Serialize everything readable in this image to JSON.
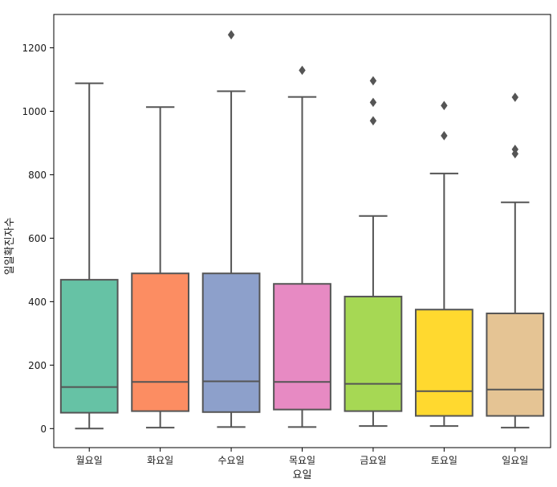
{
  "chart_data": {
    "type": "box",
    "title": "",
    "xlabel": "요일",
    "ylabel": "일일확진자수",
    "ylim": [
      -60,
      1305
    ],
    "yticks": [
      0,
      200,
      400,
      600,
      800,
      1000,
      1200
    ],
    "categories": [
      "월요일",
      "화요일",
      "수요일",
      "목요일",
      "금요일",
      "토요일",
      "일요일"
    ],
    "grid": false,
    "boxes": [
      {
        "category": "월요일",
        "color": "#66c2a5",
        "whisker_low": 0,
        "q1": 50,
        "median": 131,
        "q3": 469,
        "whisker_high": 1088,
        "outliers": []
      },
      {
        "category": "화요일",
        "color": "#fc8d62",
        "whisker_low": 3,
        "q1": 55,
        "median": 147,
        "q3": 489,
        "whisker_high": 1013,
        "outliers": []
      },
      {
        "category": "수요일",
        "color": "#8da0cb",
        "whisker_low": 5,
        "q1": 52,
        "median": 149,
        "q3": 489,
        "whisker_high": 1063,
        "outliers": [
          1241
        ]
      },
      {
        "category": "목요일",
        "color": "#e78ac3",
        "whisker_low": 5,
        "q1": 60,
        "median": 147,
        "q3": 456,
        "whisker_high": 1045,
        "outliers": [
          1129
        ]
      },
      {
        "category": "금요일",
        "color": "#a6d854",
        "whisker_low": 8,
        "q1": 55,
        "median": 141,
        "q3": 416,
        "whisker_high": 670,
        "outliers": [
          970,
          1028,
          1096
        ]
      },
      {
        "category": "토요일",
        "color": "#ffd92f",
        "whisker_low": 8,
        "q1": 40,
        "median": 118,
        "q3": 375,
        "whisker_high": 804,
        "outliers": [
          923,
          1018
        ]
      },
      {
        "category": "일요일",
        "color": "#e5c494",
        "whisker_low": 3,
        "q1": 40,
        "median": 123,
        "q3": 363,
        "whisker_high": 713,
        "outliers": [
          866,
          880,
          1044
        ]
      }
    ]
  }
}
